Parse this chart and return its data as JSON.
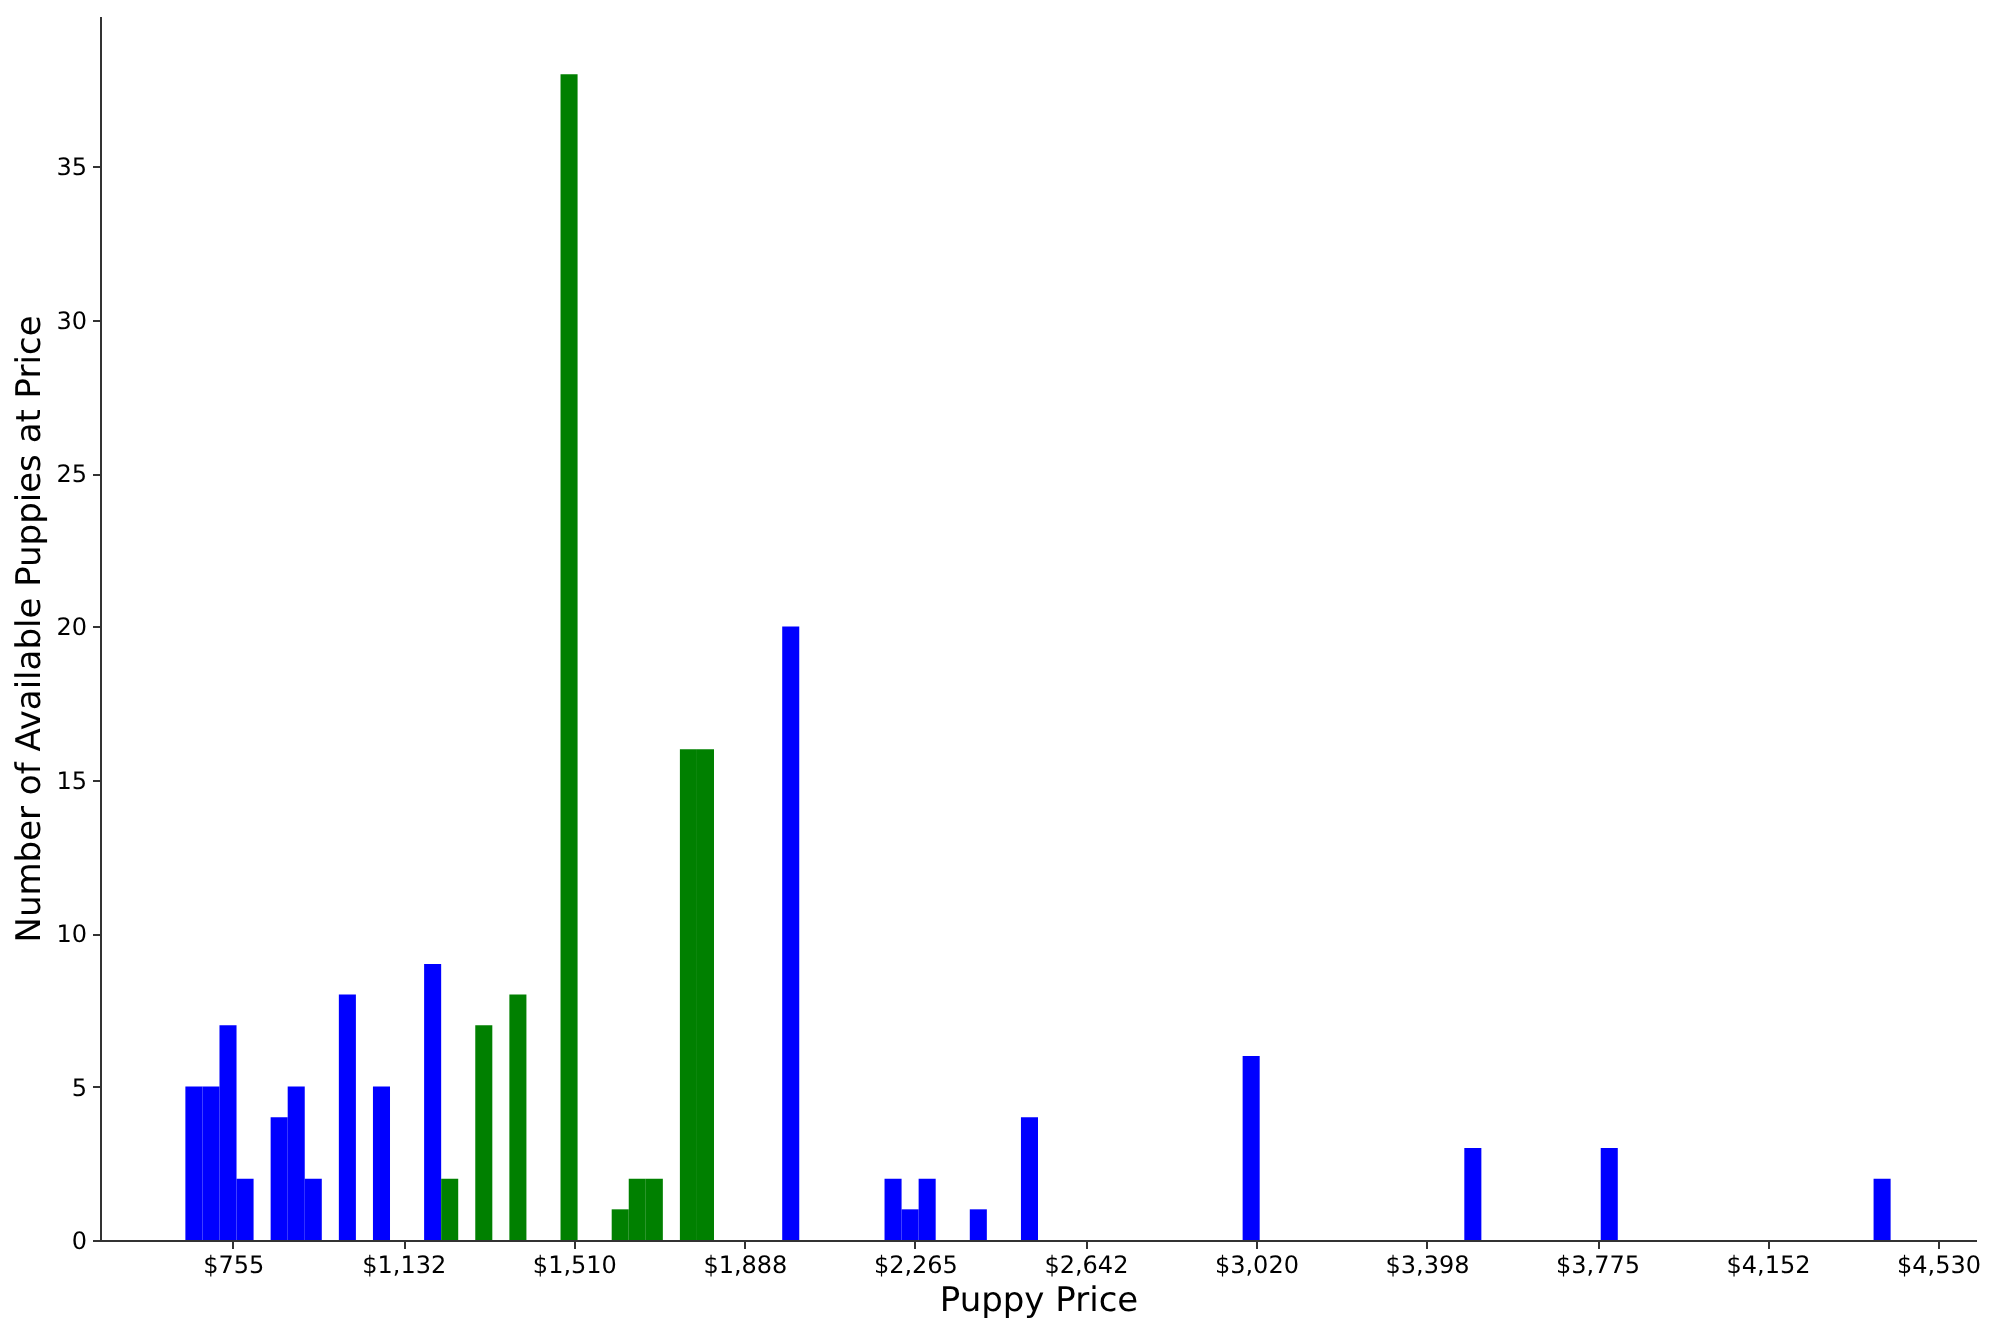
{
  "chart_data": {
    "type": "histogram",
    "xlabel": "Puppy Price",
    "ylabel": "Number of Available Puppies at Price",
    "bins": [
      650,
      687.75,
      725.5,
      763.25,
      801,
      838.75,
      876.5,
      914.25,
      952,
      989.75,
      1027.5,
      1065.25,
      1103,
      1140.75,
      1178.5,
      1216.25,
      1254,
      1291.75,
      1329.5,
      1367.25,
      1405,
      1442.75,
      1480.5,
      1518.25,
      1556,
      1593.75,
      1631.5,
      1669.25,
      1707,
      1744.75,
      1782.5,
      1820.25,
      1858,
      1895.75,
      1933.5,
      1971.25,
      2009,
      2046.75,
      2084.5,
      2122.25,
      2160,
      2197.75,
      2235.5,
      2273.25,
      2311,
      2348.75,
      2386.5,
      2424.25,
      2462,
      2499.75,
      2537.5,
      2575.25,
      2613,
      2650.75,
      2688.5,
      2726.25,
      2764,
      2801.75,
      2839.5,
      2877.25,
      2915,
      2952.75,
      2990.5,
      3028.25,
      3066,
      3103.75,
      3141.5,
      3179.25,
      3217,
      3254.75,
      3292.5,
      3330.25,
      3368,
      3405.75,
      3443.5,
      3481.25,
      3519,
      3556.75,
      3594.5,
      3632.25,
      3670,
      3707.75,
      3745.5,
      3783.25,
      3821,
      3858.75,
      3896.5,
      3934.25,
      3972,
      4009.75,
      4047.5,
      4085.25,
      4123,
      4160.75,
      4198.5,
      4236.25,
      4274,
      4311.75,
      4349.5,
      4387.25,
      4425
    ],
    "values": [
      5,
      5,
      7,
      2,
      0,
      4,
      5,
      2,
      0,
      8,
      0,
      5,
      0,
      0,
      9,
      2,
      0,
      7,
      0,
      8,
      0,
      0,
      38,
      0,
      0,
      1,
      2,
      2,
      0,
      16,
      16,
      0,
      0,
      0,
      0,
      20,
      0,
      0,
      0,
      0,
      0,
      2,
      1,
      2,
      0,
      0,
      1,
      0,
      0,
      4,
      0,
      0,
      0,
      0,
      0,
      0,
      0,
      0,
      0,
      0,
      0,
      0,
      6,
      0,
      0,
      0,
      0,
      0,
      0,
      0,
      0,
      0,
      0,
      0,
      0,
      3,
      0,
      0,
      0,
      0,
      0,
      0,
      0,
      3,
      0,
      0,
      0,
      0,
      0,
      0,
      0,
      0,
      0,
      0,
      0,
      0,
      0,
      0,
      0,
      2
    ],
    "colors": [
      "#0000ff",
      "#0000ff",
      "#0000ff",
      "#0000ff",
      "#0000ff",
      "#0000ff",
      "#0000ff",
      "#0000ff",
      "#0000ff",
      "#0000ff",
      "#0000ff",
      "#0000ff",
      "#0000ff",
      "#0000ff",
      "#0000ff",
      "#008000",
      "#008000",
      "#008000",
      "#008000",
      "#008000",
      "#008000",
      "#008000",
      "#008000",
      "#008000",
      "#008000",
      "#008000",
      "#008000",
      "#008000",
      "#008000",
      "#008000",
      "#008000",
      "#0000ff",
      "#0000ff",
      "#0000ff",
      "#0000ff",
      "#0000ff",
      "#0000ff",
      "#0000ff",
      "#0000ff",
      "#0000ff",
      "#0000ff",
      "#0000ff",
      "#0000ff",
      "#0000ff",
      "#0000ff",
      "#0000ff",
      "#0000ff",
      "#0000ff",
      "#0000ff",
      "#0000ff",
      "#0000ff",
      "#0000ff",
      "#0000ff",
      "#0000ff",
      "#0000ff",
      "#0000ff",
      "#0000ff",
      "#0000ff",
      "#0000ff",
      "#0000ff",
      "#0000ff",
      "#0000ff",
      "#0000ff",
      "#0000ff",
      "#0000ff",
      "#0000ff",
      "#0000ff",
      "#0000ff",
      "#0000ff",
      "#0000ff",
      "#0000ff",
      "#0000ff",
      "#0000ff",
      "#0000ff",
      "#0000ff",
      "#0000ff",
      "#0000ff",
      "#0000ff",
      "#0000ff",
      "#0000ff",
      "#0000ff",
      "#0000ff",
      "#0000ff",
      "#0000ff",
      "#0000ff",
      "#0000ff",
      "#0000ff",
      "#0000ff",
      "#0000ff",
      "#0000ff",
      "#0000ff",
      "#0000ff",
      "#0000ff",
      "#0000ff",
      "#0000ff",
      "#0000ff",
      "#0000ff",
      "#0000ff",
      "#0000ff",
      "#0000ff"
    ],
    "xlim": [
      461,
      4614
    ],
    "xticks": [
      {
        "value": 755,
        "label": "$755"
      },
      {
        "value": 1132.5,
        "label": "$1,132"
      },
      {
        "value": 1510,
        "label": "$1,510"
      },
      {
        "value": 1887.5,
        "label": "$1,888"
      },
      {
        "value": 2265,
        "label": "$2,265"
      },
      {
        "value": 2642.5,
        "label": "$2,642"
      },
      {
        "value": 3020,
        "label": "$3,020"
      },
      {
        "value": 3397.5,
        "label": "$3,398"
      },
      {
        "value": 3775,
        "label": "$3,775"
      },
      {
        "value": 4152.5,
        "label": "$4,152"
      },
      {
        "value": 4530,
        "label": "$4,530"
      }
    ],
    "ylim": [
      0,
      39.9
    ],
    "yticks": [
      0,
      5,
      10,
      15,
      20,
      25,
      30,
      35
    ]
  }
}
